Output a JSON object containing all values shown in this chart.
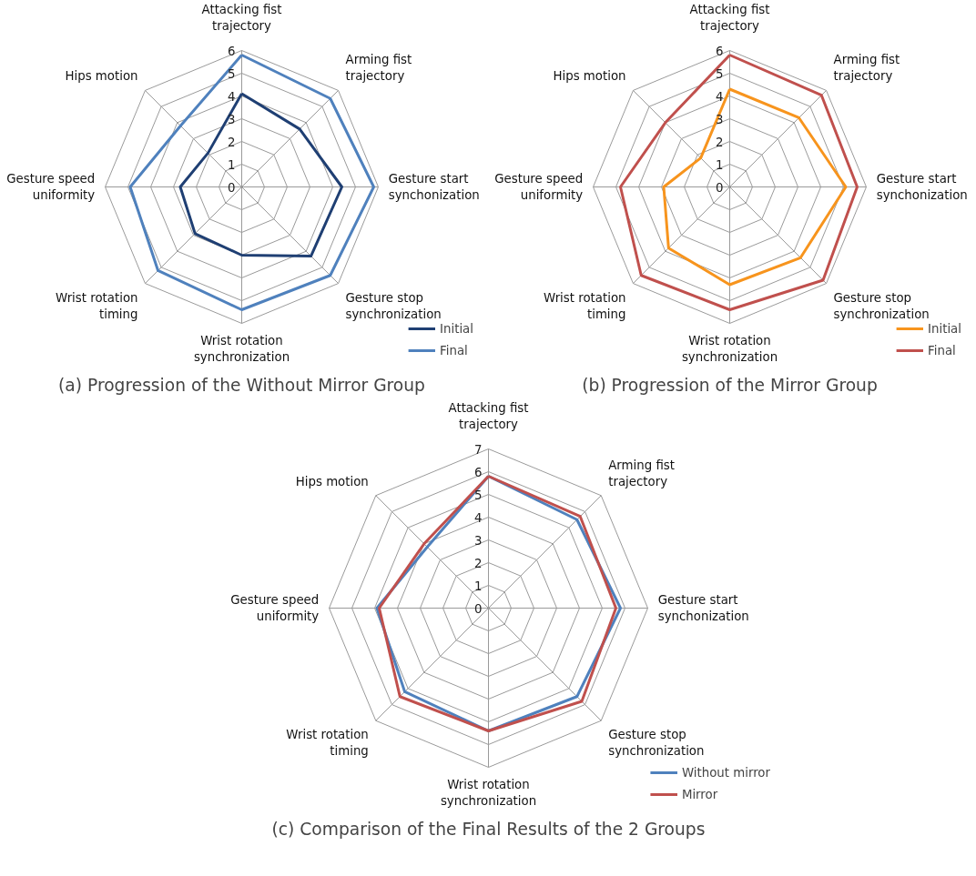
{
  "chart_data": [
    {
      "type": "radar",
      "title": "(a) Progression of the Without Mirror Group",
      "categories": [
        "Attacking fist trajectory",
        "Arming fist trajectory",
        "Gesture start synchonization",
        "Gesture stop synchronization",
        "Wrist rotation synchronization",
        "Wrist rotation timing",
        "Gesture speed uniformity",
        "Hips motion"
      ],
      "series": [
        {
          "name": "Initial",
          "color": "#1f3f73",
          "values": [
            4.1,
            3.6,
            4.4,
            4.3,
            3.0,
            2.9,
            2.7,
            2.1
          ]
        },
        {
          "name": "Final",
          "color": "#4f81bd",
          "values": [
            5.8,
            5.5,
            5.8,
            5.5,
            5.4,
            5.2,
            4.9,
            3.8
          ]
        }
      ],
      "ylim": [
        0,
        6
      ],
      "yticks": [
        0,
        1,
        2,
        3,
        4,
        5,
        6
      ],
      "grid": true,
      "legend": "bottom right",
      "line_style": "solid",
      "marker": "none"
    },
    {
      "type": "radar",
      "title": "(b) Progression of the Mirror Group",
      "categories": [
        "Attacking fist trajectory",
        "Arming fist trajectory",
        "Gesture start synchonization",
        "Gesture stop synchronization",
        "Wrist rotation synchronization",
        "Wrist rotation timing",
        "Gesture speed uniformity",
        "Hips motion"
      ],
      "series": [
        {
          "name": "Initial",
          "color": "#f7941d",
          "values": [
            4.3,
            4.3,
            5.1,
            4.4,
            4.3,
            3.8,
            2.9,
            1.8
          ]
        },
        {
          "name": "Final",
          "color": "#c0504d",
          "values": [
            5.8,
            5.7,
            5.6,
            5.8,
            5.4,
            5.5,
            4.8,
            4.0
          ]
        }
      ],
      "ylim": [
        0,
        6
      ],
      "yticks": [
        0,
        1,
        2,
        3,
        4,
        5,
        6
      ],
      "grid": true,
      "legend": "bottom right",
      "line_style": "solid",
      "marker": "none"
    },
    {
      "type": "radar",
      "title": "(c) Comparison of the Final Results of the 2 Groups",
      "categories": [
        "Attacking fist trajectory",
        "Arming fist trajectory",
        "Gesture start synchonization",
        "Gesture stop synchronization",
        "Wrist rotation synchronization",
        "Wrist rotation timing",
        "Gesture speed uniformity",
        "Hips motion"
      ],
      "series": [
        {
          "name": "Without mirror",
          "color": "#4f81bd",
          "values": [
            5.8,
            5.5,
            5.8,
            5.5,
            5.4,
            5.2,
            4.9,
            3.8
          ]
        },
        {
          "name": "Mirror",
          "color": "#c0504d",
          "values": [
            5.8,
            5.7,
            5.6,
            5.8,
            5.4,
            5.5,
            4.8,
            4.0
          ]
        }
      ],
      "ylim": [
        0,
        7
      ],
      "yticks": [
        0,
        1,
        2,
        3,
        4,
        5,
        6,
        7
      ],
      "grid": true,
      "legend": "bottom right",
      "line_style": "solid",
      "marker": "none"
    }
  ]
}
